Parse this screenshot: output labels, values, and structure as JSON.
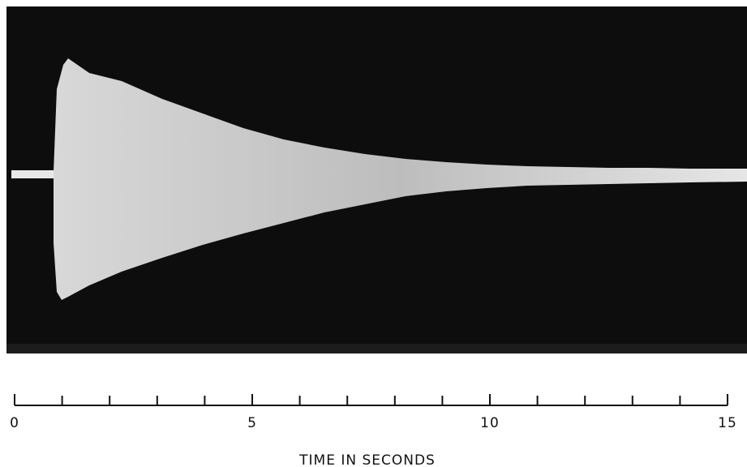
{
  "chart_data": {
    "type": "timeline",
    "xlabel": "TIME   IN   SECONDS",
    "xlim": [
      0,
      15
    ],
    "xticks": [
      0,
      5,
      10,
      15
    ],
    "xminorticks": [
      1,
      2,
      3,
      4,
      6,
      7,
      8,
      9,
      11,
      12,
      13,
      14
    ]
  }
}
